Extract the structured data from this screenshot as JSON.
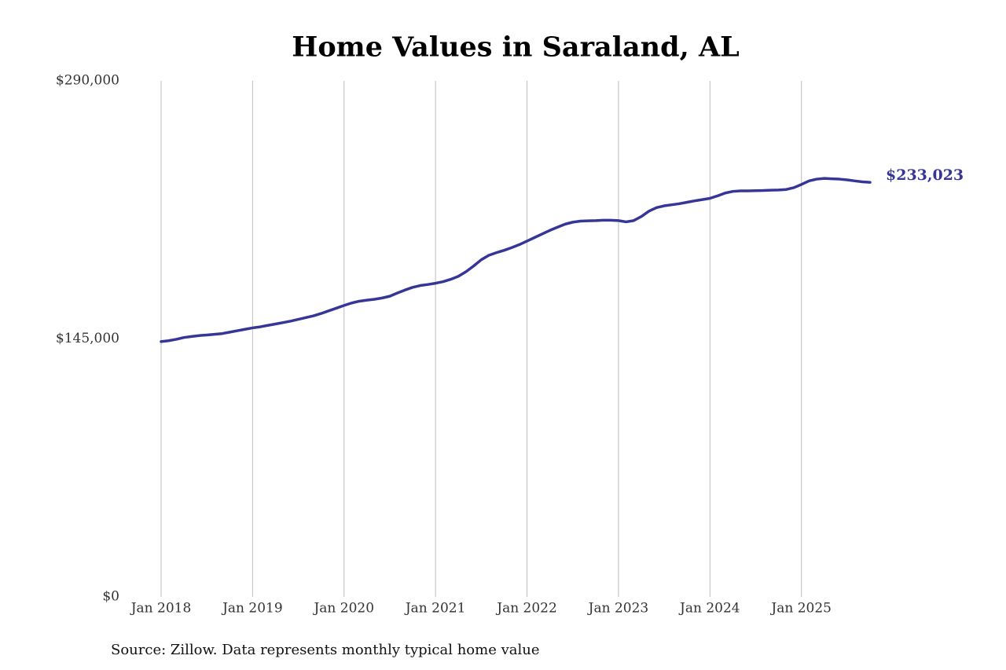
{
  "chart_data": {
    "type": "line",
    "title": "Home Values in Saraland, AL",
    "source": "Source: Zillow. Data represents monthly typical home value",
    "x": [
      "2018-01",
      "2018-02",
      "2018-03",
      "2018-04",
      "2018-05",
      "2018-06",
      "2018-07",
      "2018-08",
      "2018-09",
      "2018-10",
      "2018-11",
      "2018-12",
      "2019-01",
      "2019-02",
      "2019-03",
      "2019-04",
      "2019-05",
      "2019-06",
      "2019-07",
      "2019-08",
      "2019-09",
      "2019-10",
      "2019-11",
      "2019-12",
      "2020-01",
      "2020-02",
      "2020-03",
      "2020-04",
      "2020-05",
      "2020-06",
      "2020-07",
      "2020-08",
      "2020-09",
      "2020-10",
      "2020-11",
      "2020-12",
      "2021-01",
      "2021-02",
      "2021-03",
      "2021-04",
      "2021-05",
      "2021-06",
      "2021-07",
      "2021-08",
      "2021-09",
      "2021-10",
      "2021-11",
      "2021-12",
      "2022-01",
      "2022-02",
      "2022-03",
      "2022-04",
      "2022-05",
      "2022-06",
      "2022-07",
      "2022-08",
      "2022-09",
      "2022-10",
      "2022-11",
      "2022-12",
      "2023-01",
      "2023-02",
      "2023-03",
      "2023-04",
      "2023-05",
      "2023-06",
      "2023-07",
      "2023-08",
      "2023-09",
      "2023-10",
      "2023-11",
      "2023-12",
      "2024-01",
      "2024-02",
      "2024-03",
      "2024-04",
      "2024-05",
      "2024-06",
      "2024-07",
      "2024-08",
      "2024-09",
      "2024-10",
      "2024-11",
      "2024-12",
      "2025-01",
      "2025-02",
      "2025-03",
      "2025-04",
      "2025-05",
      "2025-06",
      "2025-07",
      "2025-08",
      "2025-09",
      "2025-10"
    ],
    "series": [
      {
        "color": "#363699",
        "values": [
          143500,
          144000,
          144800,
          145800,
          146400,
          146900,
          147200,
          147600,
          148000,
          148800,
          149600,
          150400,
          151200,
          151800,
          152600,
          153400,
          154200,
          155000,
          156000,
          157000,
          158000,
          159300,
          160800,
          162300,
          163800,
          165200,
          166200,
          166800,
          167300,
          168000,
          169000,
          170800,
          172500,
          174000,
          175000,
          175600,
          176300,
          177200,
          178500,
          180200,
          182800,
          186000,
          189500,
          192000,
          193500,
          194800,
          196300,
          198000,
          200000,
          202000,
          204000,
          206000,
          207800,
          209500,
          210600,
          211200,
          211400,
          211500,
          211700,
          211700,
          211500,
          210800,
          211500,
          213800,
          216800,
          218800,
          219800,
          220400,
          221000,
          221800,
          222600,
          223300,
          224000,
          225400,
          227000,
          227900,
          228200,
          228200,
          228300,
          228400,
          228600,
          228700,
          229000,
          230000,
          231800,
          233800,
          234800,
          235200,
          235000,
          234800,
          234400,
          233800,
          233300,
          233023
        ],
        "value_labels": [
          null,
          null,
          null,
          null,
          null,
          null,
          null,
          null,
          null,
          null,
          null,
          null,
          null,
          null,
          null,
          null,
          null,
          null,
          null,
          null,
          null,
          null,
          null,
          null,
          null,
          null,
          null,
          null,
          null,
          null,
          null,
          null,
          null,
          null,
          null,
          null,
          null,
          null,
          null,
          null,
          null,
          null,
          null,
          null,
          null,
          null,
          null,
          null,
          null,
          null,
          null,
          null,
          null,
          null,
          null,
          null,
          null,
          null,
          null,
          null,
          null,
          null,
          null,
          null,
          null,
          null,
          null,
          null,
          null,
          null,
          null,
          null,
          null,
          null,
          null,
          null,
          null,
          null,
          null,
          null,
          null,
          null,
          null,
          null,
          null,
          null,
          null,
          null,
          null,
          null,
          null,
          null,
          null,
          "$233,023"
        ]
      }
    ],
    "xlim": [
      "2018-01",
      "2025-10"
    ],
    "xticks": [
      {
        "value": "2018-01",
        "label": "Jan 2018"
      },
      {
        "value": "2019-01",
        "label": "Jan 2019"
      },
      {
        "value": "2020-01",
        "label": "Jan 2020"
      },
      {
        "value": "2021-01",
        "label": "Jan 2021"
      },
      {
        "value": "2022-01",
        "label": "Jan 2022"
      },
      {
        "value": "2023-01",
        "label": "Jan 2023"
      },
      {
        "value": "2024-01",
        "label": "Jan 2024"
      },
      {
        "value": "2025-01",
        "label": "Jan 2025"
      }
    ],
    "ylim": [
      0,
      290000
    ],
    "yticks": [
      {
        "value": 0,
        "label": "$0"
      },
      {
        "value": 145000,
        "label": "$145,000"
      },
      {
        "value": 290000,
        "label": "$290,000"
      }
    ],
    "grid": true
  }
}
